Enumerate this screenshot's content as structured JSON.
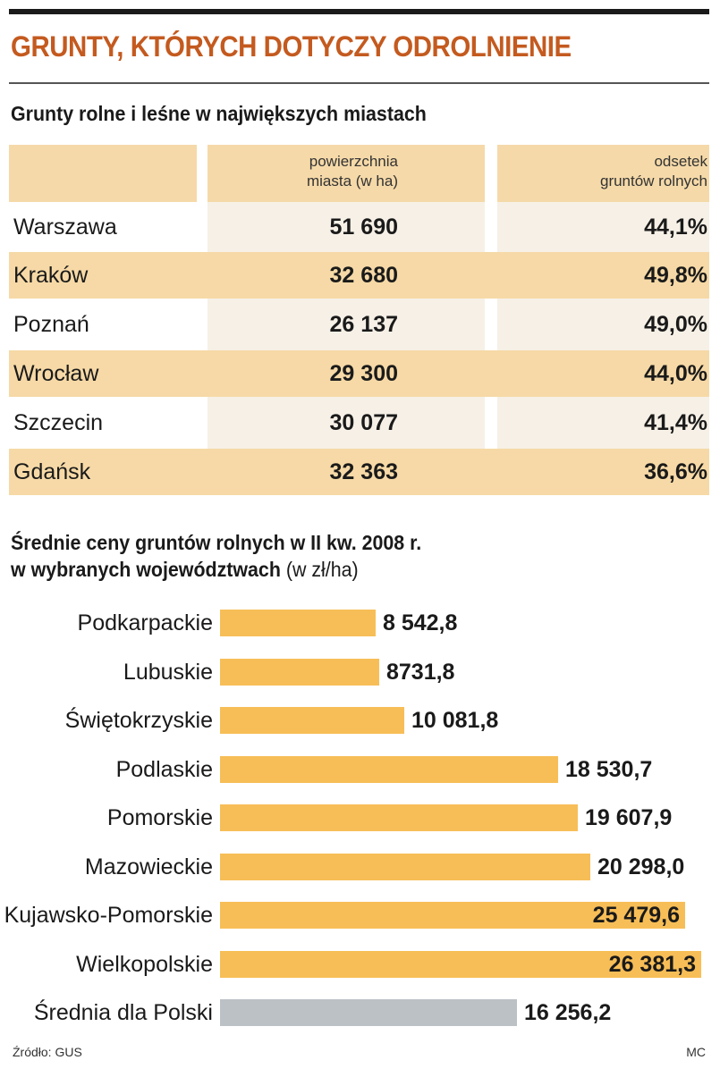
{
  "title": "GRUNTY, KTÓRYCH DOTYCZY ODROLNIENIE",
  "table": {
    "subtitle": "Grunty rolne i leśne w największych miastach",
    "col1_header": [
      "powierzchnia",
      "miasta (w ha)"
    ],
    "col2_header": [
      "odsetek",
      "gruntów rolnych"
    ],
    "rows": [
      {
        "city": "Warszawa",
        "area": "51 690",
        "share": "44,1%"
      },
      {
        "city": "Kraków",
        "area": "32 680",
        "share": "49,8%"
      },
      {
        "city": "Poznań",
        "area": "26 137",
        "share": "49,0%"
      },
      {
        "city": "Wrocław",
        "area": "29 300",
        "share": "44,0%"
      },
      {
        "city": "Szczecin",
        "area": "30 077",
        "share": "41,4%"
      },
      {
        "city": "Gdańsk",
        "area": "32 363",
        "share": "36,6%"
      }
    ]
  },
  "chart_heading": {
    "line1": "Średnie ceny gruntów rolnych w II kw. 2008 r.",
    "line2_bold": "w wybranych województwach",
    "line2_unit": "(w zł/ha)"
  },
  "chart_data": {
    "type": "bar",
    "orientation": "horizontal",
    "title": "Średnie ceny gruntów rolnych w II kw. 2008 r. w wybranych województwach (w zł/ha)",
    "categories": [
      "Podkarpackie",
      "Lubuskie",
      "Świętokrzyskie",
      "Podlaskie",
      "Pomorskie",
      "Mazowieckie",
      "Kujawsko-Pomorskie",
      "Wielkopolskie",
      "Średnia dla Polski"
    ],
    "values": [
      8542.8,
      8731.8,
      10081.8,
      18530.7,
      19607.9,
      20298.0,
      25479.6,
      26381.3,
      16256.2
    ],
    "value_labels": [
      "8 542,8",
      "8731,8",
      "10 081,8",
      "18 530,7",
      "19 607,9",
      "20 298,0",
      "25 479,6",
      "26 381,3",
      "16 256,2"
    ],
    "xlim": [
      0,
      26381.3
    ],
    "colors": {
      "bar": "#f7be57",
      "average": "#bcc1c6"
    }
  },
  "footer": {
    "source": "Źródło: GUS",
    "author": "MC"
  }
}
